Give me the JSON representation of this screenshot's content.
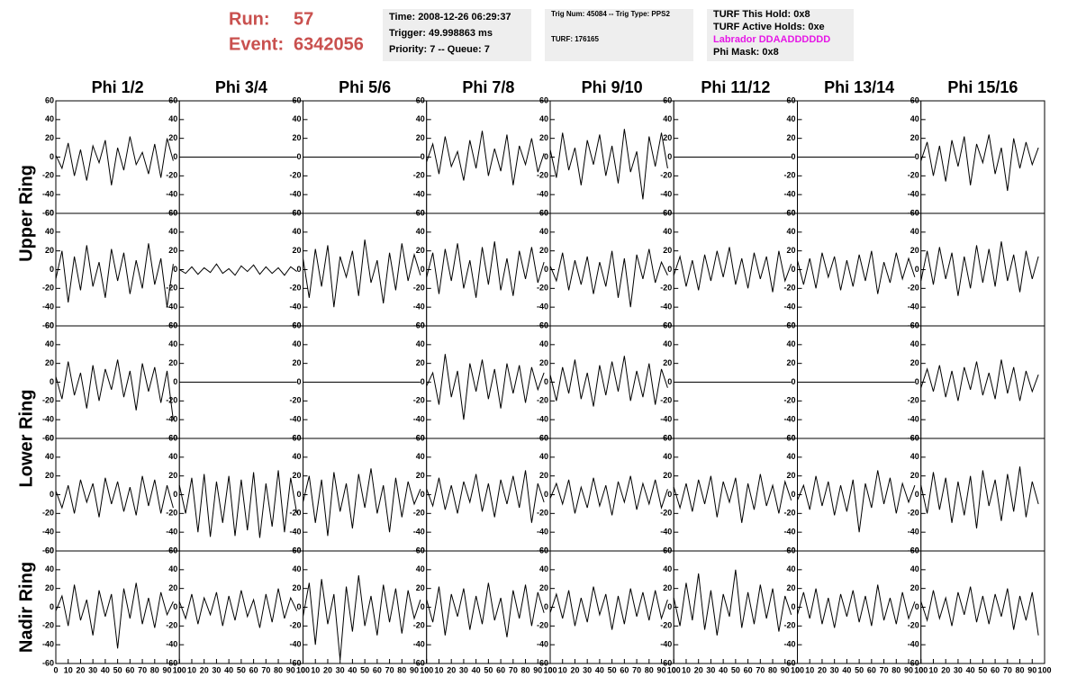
{
  "header": {
    "run_label": "Run:",
    "run": "57",
    "event_label": "Event:",
    "event": "6342056",
    "time": "Time: 2008-12-26 06:29:37",
    "trigger": "Trigger: 49.998863 ms",
    "priority": "Priority: 7 -- Queue: 7",
    "trig_num": "Trig Num: 45084 -- Trig Type: PPS2",
    "turf": "TURF: 176165",
    "turf_hold": "TURF This Hold: 0x8",
    "turf_active": "TURF Active Holds: 0xe",
    "labrador": "Labrador DDAADDDDDD",
    "phi_mask": "Phi Mask: 0x8"
  },
  "chart_data": {
    "type": "line",
    "color": "#000000",
    "columns": [
      "Phi 1/2",
      "Phi 3/4",
      "Phi 5/6",
      "Phi 7/8",
      "Phi 9/10",
      "Phi 11/12",
      "Phi 13/14",
      "Phi 15/16"
    ],
    "ring_labels": [
      "Upper Ring",
      "Lower Ring",
      "Nadir Ring"
    ],
    "xlim": [
      0,
      100
    ],
    "ylim": [
      -60,
      60
    ],
    "xticks": [
      0,
      10,
      20,
      30,
      40,
      50,
      60,
      70,
      80,
      90,
      100
    ],
    "yticks": [
      -60,
      -40,
      -20,
      0,
      20,
      40,
      60
    ],
    "x": [
      0,
      5,
      10,
      15,
      20,
      25,
      30,
      35,
      40,
      45,
      50,
      55,
      60,
      65,
      70,
      75,
      80,
      85,
      90,
      95
    ],
    "panels": [
      [
        [
          2,
          -12,
          15,
          -20,
          8,
          -25,
          12,
          -6,
          18,
          -30,
          10,
          -14,
          22,
          -8,
          5,
          -18,
          14,
          -22,
          20,
          -4
        ],
        [
          0,
          0,
          0,
          0,
          0,
          0,
          0,
          0,
          0,
          0,
          0,
          0,
          0,
          0,
          0,
          0,
          0,
          0,
          0,
          0
        ],
        [
          0,
          0,
          0,
          0,
          0,
          0,
          0,
          0,
          0,
          0,
          0,
          0,
          0,
          0,
          0,
          0,
          0,
          0,
          0,
          0
        ],
        [
          -5,
          14,
          -18,
          22,
          -10,
          6,
          -25,
          18,
          -12,
          28,
          -20,
          9,
          -15,
          24,
          -30,
          12,
          -8,
          20,
          -16,
          4
        ],
        [
          8,
          -22,
          26,
          -14,
          10,
          -30,
          18,
          -8,
          24,
          -20,
          12,
          -28,
          30,
          -16,
          6,
          -45,
          22,
          -10,
          26,
          -12
        ],
        [
          0,
          0,
          0,
          0,
          0,
          0,
          0,
          0,
          0,
          0,
          0,
          0,
          0,
          0,
          0,
          0,
          0,
          0,
          0,
          0
        ],
        [
          0,
          0,
          0,
          0,
          0,
          0,
          0,
          0,
          0,
          0,
          0,
          0,
          0,
          0,
          0,
          0,
          0,
          0,
          0,
          0
        ],
        [
          -4,
          16,
          -20,
          12,
          -26,
          18,
          -10,
          22,
          -30,
          14,
          -6,
          24,
          -18,
          10,
          -36,
          20,
          -12,
          16,
          -8,
          10
        ]
      ],
      [
        [
          -10,
          20,
          -35,
          14,
          -22,
          26,
          -18,
          8,
          -30,
          22,
          -12,
          18,
          -26,
          10,
          -20,
          28,
          -16,
          12,
          -40,
          6
        ],
        [
          0,
          -4,
          3,
          -5,
          2,
          -3,
          6,
          -4,
          1,
          -6,
          4,
          -2,
          5,
          -5,
          3,
          -4,
          2,
          -6,
          3,
          -2
        ],
        [
          12,
          -30,
          22,
          -18,
          26,
          -40,
          14,
          -8,
          20,
          -28,
          32,
          -14,
          10,
          -36,
          18,
          -22,
          28,
          -12,
          16,
          -6
        ],
        [
          -8,
          18,
          -26,
          22,
          -12,
          28,
          -20,
          10,
          -30,
          24,
          -16,
          30,
          -22,
          12,
          -28,
          20,
          -10,
          24,
          -14,
          8
        ],
        [
          4,
          -12,
          18,
          -22,
          10,
          -16,
          14,
          -26,
          8,
          -18,
          20,
          -30,
          12,
          -40,
          16,
          -10,
          22,
          -14,
          8,
          -6
        ],
        [
          -6,
          14,
          -18,
          10,
          -22,
          16,
          -12,
          20,
          -8,
          24,
          -16,
          12,
          -20,
          18,
          -10,
          14,
          -24,
          20,
          -12,
          6
        ],
        [
          10,
          -16,
          12,
          -20,
          18,
          -8,
          14,
          -22,
          10,
          -18,
          16,
          -12,
          20,
          -26,
          8,
          -14,
          18,
          -10,
          12,
          -8
        ],
        [
          -12,
          20,
          -16,
          24,
          -10,
          18,
          -28,
          14,
          -20,
          26,
          -14,
          22,
          -18,
          30,
          -12,
          16,
          -24,
          20,
          -10,
          14
        ]
      ],
      [
        [
          6,
          -18,
          22,
          -14,
          10,
          -28,
          18,
          -20,
          14,
          -8,
          24,
          -16,
          12,
          -30,
          20,
          -10,
          16,
          -22,
          12,
          -40
        ],
        [
          0,
          0,
          0,
          0,
          0,
          0,
          0,
          0,
          0,
          0,
          0,
          0,
          0,
          0,
          0,
          0,
          0,
          0,
          0,
          0
        ],
        [
          0,
          0,
          0,
          0,
          0,
          0,
          0,
          0,
          0,
          0,
          0,
          0,
          0,
          0,
          0,
          0,
          0,
          0,
          0,
          0
        ],
        [
          -4,
          10,
          -24,
          30,
          -16,
          12,
          -40,
          20,
          -10,
          24,
          -18,
          14,
          -28,
          20,
          -12,
          18,
          -22,
          16,
          -8,
          10
        ],
        [
          8,
          -20,
          16,
          -12,
          24,
          -18,
          10,
          -26,
          18,
          -14,
          22,
          -10,
          28,
          -20,
          12,
          -16,
          20,
          -24,
          14,
          -6
        ],
        [
          0,
          0,
          0,
          0,
          0,
          0,
          0,
          0,
          0,
          0,
          0,
          0,
          0,
          0,
          0,
          0,
          0,
          0,
          0,
          0
        ],
        [
          0,
          0,
          0,
          0,
          0,
          0,
          0,
          0,
          0,
          0,
          0,
          0,
          0,
          0,
          0,
          0,
          0,
          0,
          0,
          0
        ],
        [
          -6,
          14,
          -10,
          18,
          -16,
          12,
          -20,
          16,
          -8,
          22,
          -14,
          10,
          -18,
          24,
          -12,
          16,
          -20,
          12,
          -10,
          8
        ]
      ],
      [
        [
          4,
          -14,
          10,
          -20,
          16,
          -8,
          12,
          -24,
          18,
          -10,
          14,
          -18,
          8,
          -22,
          20,
          -12,
          16,
          -20,
          10,
          -14
        ],
        [
          10,
          -20,
          18,
          -40,
          22,
          -45,
          14,
          -30,
          20,
          -44,
          16,
          -38,
          24,
          -46,
          12,
          -34,
          26,
          -40,
          18,
          -20
        ],
        [
          -8,
          20,
          -30,
          16,
          -44,
          24,
          -18,
          12,
          -36,
          22,
          -14,
          28,
          -20,
          10,
          -40,
          18,
          -24,
          14,
          -10,
          6
        ],
        [
          6,
          -12,
          18,
          -16,
          10,
          -20,
          14,
          -8,
          22,
          -18,
          12,
          -24,
          16,
          -10,
          20,
          -14,
          26,
          -30,
          12,
          -8
        ],
        [
          -4,
          12,
          -10,
          16,
          -20,
          8,
          -14,
          18,
          -12,
          10,
          -22,
          14,
          -8,
          20,
          -16,
          12,
          -10,
          16,
          -14,
          6
        ],
        [
          8,
          -14,
          12,
          -18,
          16,
          -10,
          20,
          -24,
          14,
          -8,
          18,
          -30,
          12,
          -16,
          22,
          -12,
          10,
          -20,
          14,
          -6
        ],
        [
          -6,
          10,
          -16,
          20,
          -12,
          14,
          -22,
          10,
          -18,
          16,
          -40,
          12,
          -14,
          26,
          -10,
          18,
          -20,
          12,
          -8,
          10
        ],
        [
          10,
          -20,
          24,
          -16,
          18,
          -30,
          14,
          -22,
          20,
          -36,
          26,
          -12,
          16,
          -28,
          22,
          -18,
          30,
          -24,
          14,
          -10
        ]
      ],
      [
        [
          -4,
          12,
          -20,
          24,
          -14,
          8,
          -30,
          18,
          -10,
          14,
          -44,
          20,
          -12,
          26,
          -18,
          10,
          -22,
          16,
          -8,
          6
        ],
        [
          6,
          -12,
          14,
          -18,
          10,
          -8,
          16,
          -20,
          12,
          -14,
          18,
          -10,
          8,
          -22,
          14,
          -16,
          20,
          -12,
          10,
          -4
        ],
        [
          -10,
          26,
          -40,
          30,
          -18,
          14,
          -56,
          22,
          -26,
          34,
          -20,
          12,
          -30,
          24,
          -16,
          20,
          -28,
          18,
          -12,
          8
        ],
        [
          8,
          -16,
          22,
          -30,
          14,
          -10,
          20,
          -24,
          12,
          -18,
          26,
          -14,
          10,
          -32,
          18,
          -12,
          24,
          -20,
          16,
          -6
        ],
        [
          -6,
          14,
          -12,
          18,
          -20,
          10,
          -16,
          22,
          -8,
          14,
          -24,
          12,
          -18,
          20,
          -10,
          16,
          -14,
          18,
          -12,
          8
        ],
        [
          10,
          -20,
          26,
          -14,
          36,
          -24,
          18,
          -30,
          14,
          -10,
          40,
          -22,
          16,
          -18,
          24,
          -12,
          20,
          -26,
          12,
          -8
        ],
        [
          -8,
          16,
          -12,
          20,
          -18,
          10,
          -22,
          14,
          -10,
          18,
          -16,
          12,
          -20,
          24,
          -14,
          10,
          -18,
          16,
          -12,
          6
        ],
        [
          6,
          -14,
          18,
          -12,
          10,
          -20,
          16,
          -8,
          22,
          -16,
          12,
          -18,
          14,
          -10,
          20,
          -24,
          12,
          -14,
          16,
          -30
        ]
      ]
    ]
  }
}
